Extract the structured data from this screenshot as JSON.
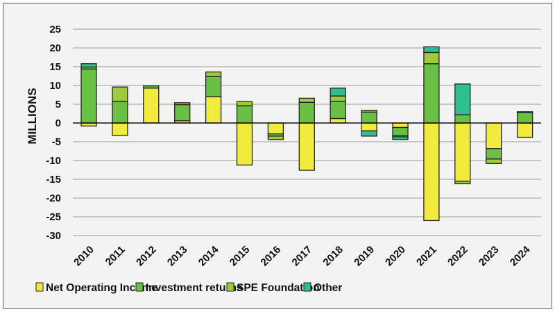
{
  "chart_data": {
    "type": "bar",
    "stacked": true,
    "title": "",
    "xlabel": "",
    "ylabel": "MILLIONS",
    "ylim": [
      -30,
      25
    ],
    "yticks": [
      25,
      20,
      15,
      10,
      5,
      0,
      -5,
      -10,
      -15,
      -20,
      -25,
      -30
    ],
    "grid": true,
    "legend_position": "bottom",
    "categories": [
      "2010",
      "2011",
      "2012",
      "2013",
      "2014",
      "2015",
      "2016",
      "2017",
      "2018",
      "2019",
      "2020",
      "2021",
      "2022",
      "2023",
      "2024"
    ],
    "series": [
      {
        "name": "Net Operating Income",
        "color": "#f0eb3c",
        "values": [
          -0.8,
          -3.3,
          9.3,
          0.6,
          7.0,
          -11.2,
          -2.9,
          -12.6,
          1.2,
          -2.1,
          -1.2,
          -26.0,
          -15.5,
          -6.8,
          -3.8
        ]
      },
      {
        "name": "Investment returns",
        "color": "#6abf45",
        "values": [
          14.4,
          5.8,
          0.6,
          4.3,
          5.4,
          4.6,
          -0.6,
          5.5,
          4.6,
          2.9,
          -2.1,
          15.8,
          2.2,
          -2.8,
          2.8
        ]
      },
      {
        "name": "SPE Foundation",
        "color": "#9ccc3c",
        "values": [
          0.5,
          3.8,
          0,
          0.5,
          1.2,
          1.1,
          -0.9,
          1.1,
          1.4,
          0.5,
          -0.4,
          3.0,
          -0.7,
          -1.2,
          0.2
        ]
      },
      {
        "name": "Other",
        "color": "#2fbf8f",
        "values": [
          0.9,
          0,
          0,
          0,
          0,
          0,
          0,
          0,
          2.1,
          -1.4,
          -0.7,
          1.5,
          8.2,
          0,
          0
        ]
      }
    ]
  }
}
